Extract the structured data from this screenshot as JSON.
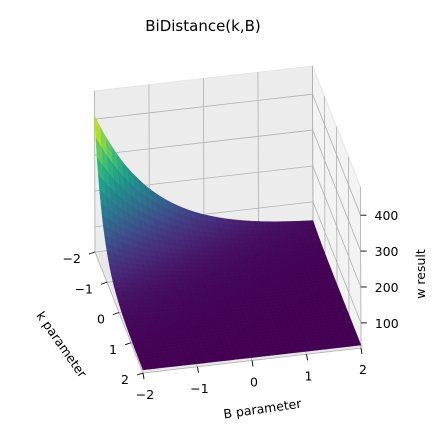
{
  "chart_data": {
    "type": "surface3d",
    "title": "BiDistance(k,B)",
    "xlabel": "k parameter",
    "ylabel": "B parameter",
    "zlabel": "w result",
    "x_ticks": [
      "−2",
      "−1",
      "0",
      "1",
      "2"
    ],
    "y_ticks": [
      "−2",
      "−1",
      "0",
      "1",
      "2"
    ],
    "z_ticks": [
      "100",
      "200",
      "300",
      "400"
    ],
    "xlim": [
      -2,
      2
    ],
    "ylim": [
      -2,
      2
    ],
    "zlim": [
      30,
      420
    ],
    "colormap": "viridis",
    "grid": true,
    "surface_samples": [
      {
        "k": -2,
        "B": -2,
        "w": 410
      },
      {
        "k": -1.5,
        "B": -2,
        "w": 170
      },
      {
        "k": -1,
        "B": -2,
        "w": 85
      },
      {
        "k": 0,
        "B": -2,
        "w": 40
      },
      {
        "k": 2,
        "B": -2,
        "w": 38
      },
      {
        "k": -2,
        "B": 0,
        "w": 38
      },
      {
        "k": -2,
        "B": 2,
        "w": 38
      },
      {
        "k": 2,
        "B": 2,
        "w": 38
      }
    ]
  }
}
